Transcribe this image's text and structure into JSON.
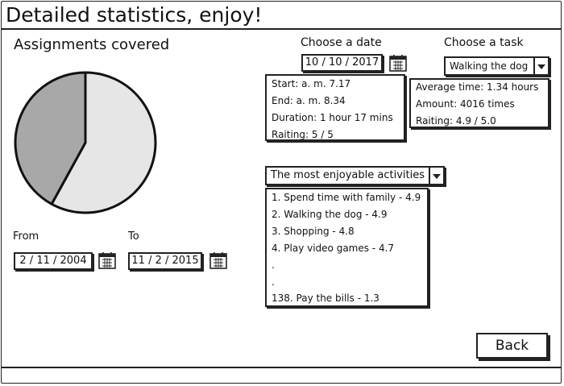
{
  "window": {
    "title": "Detailed statistics, enjoy!"
  },
  "assignments": {
    "heading": "Assignments covered",
    "from_label": "From",
    "to_label": "To",
    "from_date": "2 / 11 / 2004",
    "to_date": "11 / 2 / 2015"
  },
  "chart_data": {
    "type": "pie",
    "values": [
      58,
      42
    ],
    "colors": [
      "#e6e6e6",
      "#a8a8a8"
    ],
    "start_angle_deg": 0
  },
  "date_select": {
    "label": "Choose a date",
    "value": "10 / 10 / 2017",
    "details": [
      "Start: a. m. 7.17",
      "End: a. m. 8.34",
      "Duration: 1 hour 17 mins",
      "Raiting: 5 / 5"
    ]
  },
  "task_select": {
    "label": "Choose a task",
    "value": "Walking the dog",
    "details": [
      "Average time: 1.34 hours",
      "Amount: 4016 times",
      "Raiting: 4.9 / 5.0"
    ]
  },
  "activities": {
    "dropdown_value": "The most enjoyable activities",
    "items": [
      "1. Spend time with family - 4.9",
      "2. Walking the dog - 4.9",
      "3. Shopping - 4.8",
      "4. Play video games - 4.7",
      ".",
      ".",
      "138. Pay the bills - 1.3"
    ]
  },
  "actions": {
    "back_label": "Back"
  },
  "icons": {
    "calendar": "calendar-icon",
    "dropdown": "chevron-down-icon"
  }
}
